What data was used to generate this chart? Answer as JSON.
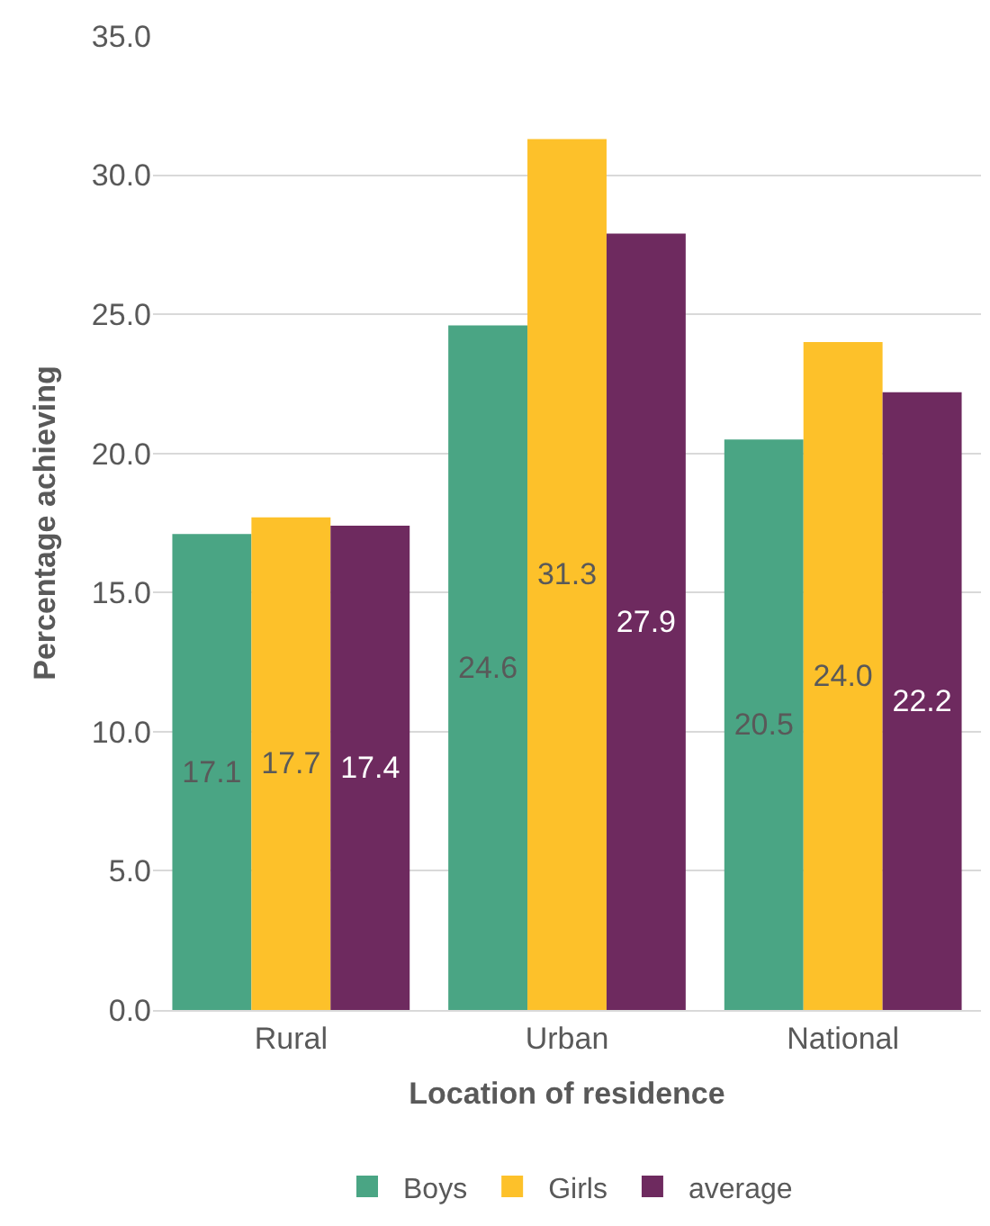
{
  "chart_data": {
    "type": "bar",
    "xlabel": "Location of residence",
    "ylabel": "Percentage achieving",
    "categories": [
      "Rural",
      "Urban",
      "National"
    ],
    "series": [
      {
        "name": "Boys",
        "color": "#4aa584",
        "values": [
          17.1,
          24.6,
          20.5
        ],
        "value_labels": [
          "17.1",
          "24.6",
          "20.5"
        ]
      },
      {
        "name": "Girls",
        "color": "#fdc12a",
        "values": [
          17.7,
          31.3,
          24.0
        ],
        "value_labels": [
          "17.7",
          "31.3",
          "24.0"
        ]
      },
      {
        "name": "average",
        "color": "#6e2a5f",
        "values": [
          17.4,
          27.9,
          22.2
        ],
        "value_labels": [
          "17.4",
          "27.9",
          "22.2"
        ]
      }
    ],
    "ylim": [
      0,
      35
    ],
    "yticks": [
      {
        "value": 0,
        "label": "0.0"
      },
      {
        "value": 5,
        "label": "5.0"
      },
      {
        "value": 10,
        "label": "10.0"
      },
      {
        "value": 15,
        "label": "15.0"
      },
      {
        "value": 20,
        "label": "20.0"
      },
      {
        "value": 25,
        "label": "25.0"
      },
      {
        "value": 30,
        "label": "30.0"
      },
      {
        "value": 35,
        "label": "35.0"
      }
    ],
    "grid": "y",
    "legend": "bottom"
  }
}
